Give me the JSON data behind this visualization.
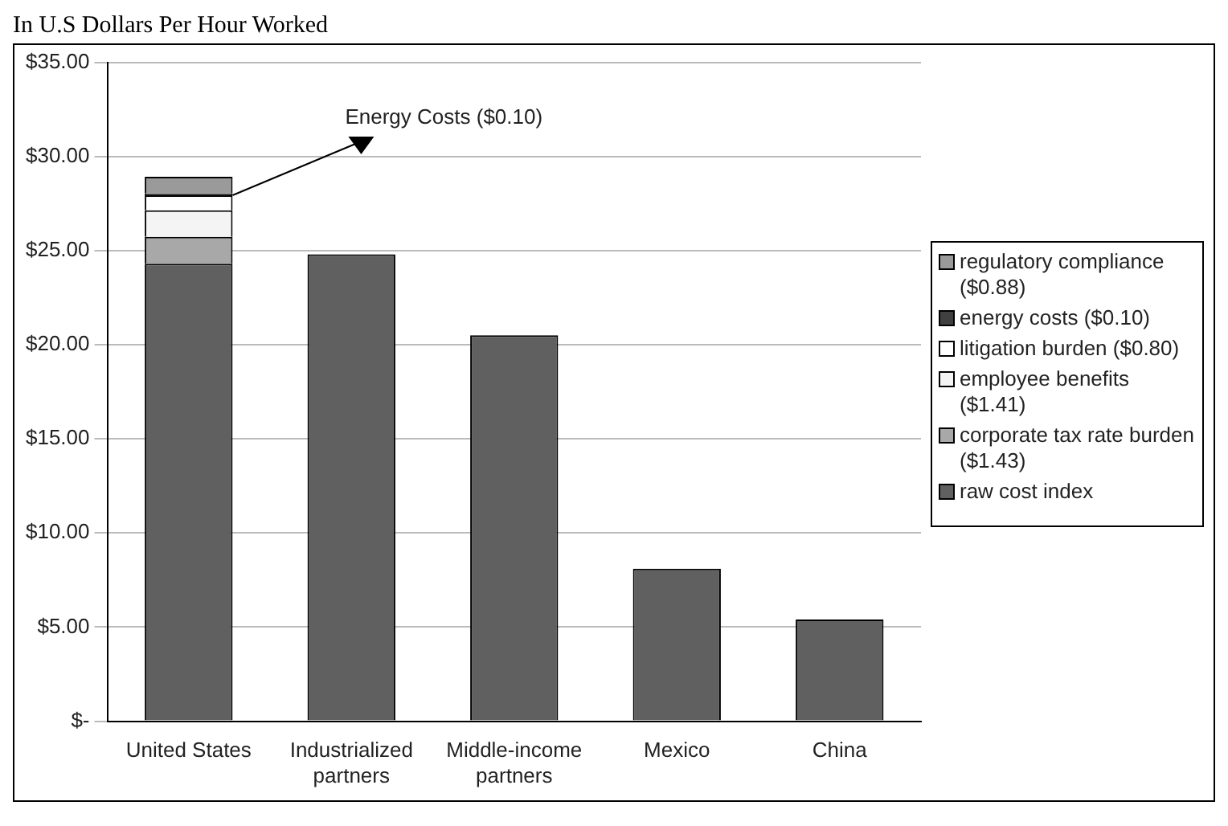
{
  "chart_data": {
    "type": "bar",
    "title": "In U.S Dollars Per Hour Worked",
    "stacked": true,
    "categories": [
      "United States",
      "Industrialized partners",
      "Middle-income partners",
      "Mexico",
      "China"
    ],
    "series": [
      {
        "name": "raw cost index",
        "color": "#606060",
        "values": [
          24.3,
          24.8,
          20.5,
          8.1,
          5.4
        ]
      },
      {
        "name": "corporate tax rate burden ($1.43)",
        "color": "#a8a8a8",
        "values": [
          1.43,
          null,
          null,
          null,
          null
        ]
      },
      {
        "name": "employee benefits ($1.41)",
        "color": "#f4f4f4",
        "values": [
          1.41,
          null,
          null,
          null,
          null
        ]
      },
      {
        "name": "litigation burden ($0.80)",
        "color": "#ffffff",
        "values": [
          0.8,
          null,
          null,
          null,
          null
        ]
      },
      {
        "name": "energy costs ($0.10)",
        "color": "#404040",
        "values": [
          0.1,
          null,
          null,
          null,
          null
        ]
      },
      {
        "name": "regulatory compliance ($0.88)",
        "color": "#9a9a9a",
        "values": [
          0.88,
          null,
          null,
          null,
          null
        ]
      }
    ],
    "ylim": [
      0,
      35
    ],
    "yticks": [
      {
        "value": 0,
        "label": "$-"
      },
      {
        "value": 5,
        "label": "$5.00"
      },
      {
        "value": 10,
        "label": "$10.00"
      },
      {
        "value": 15,
        "label": "$15.00"
      },
      {
        "value": 20,
        "label": "$20.00"
      },
      {
        "value": 25,
        "label": "$25.00"
      },
      {
        "value": 30,
        "label": "$30.00"
      },
      {
        "value": 35,
        "label": "$35.00"
      }
    ],
    "annotations": [
      "Energy Costs ($0.10)"
    ],
    "grid": "y",
    "legend": "right"
  }
}
